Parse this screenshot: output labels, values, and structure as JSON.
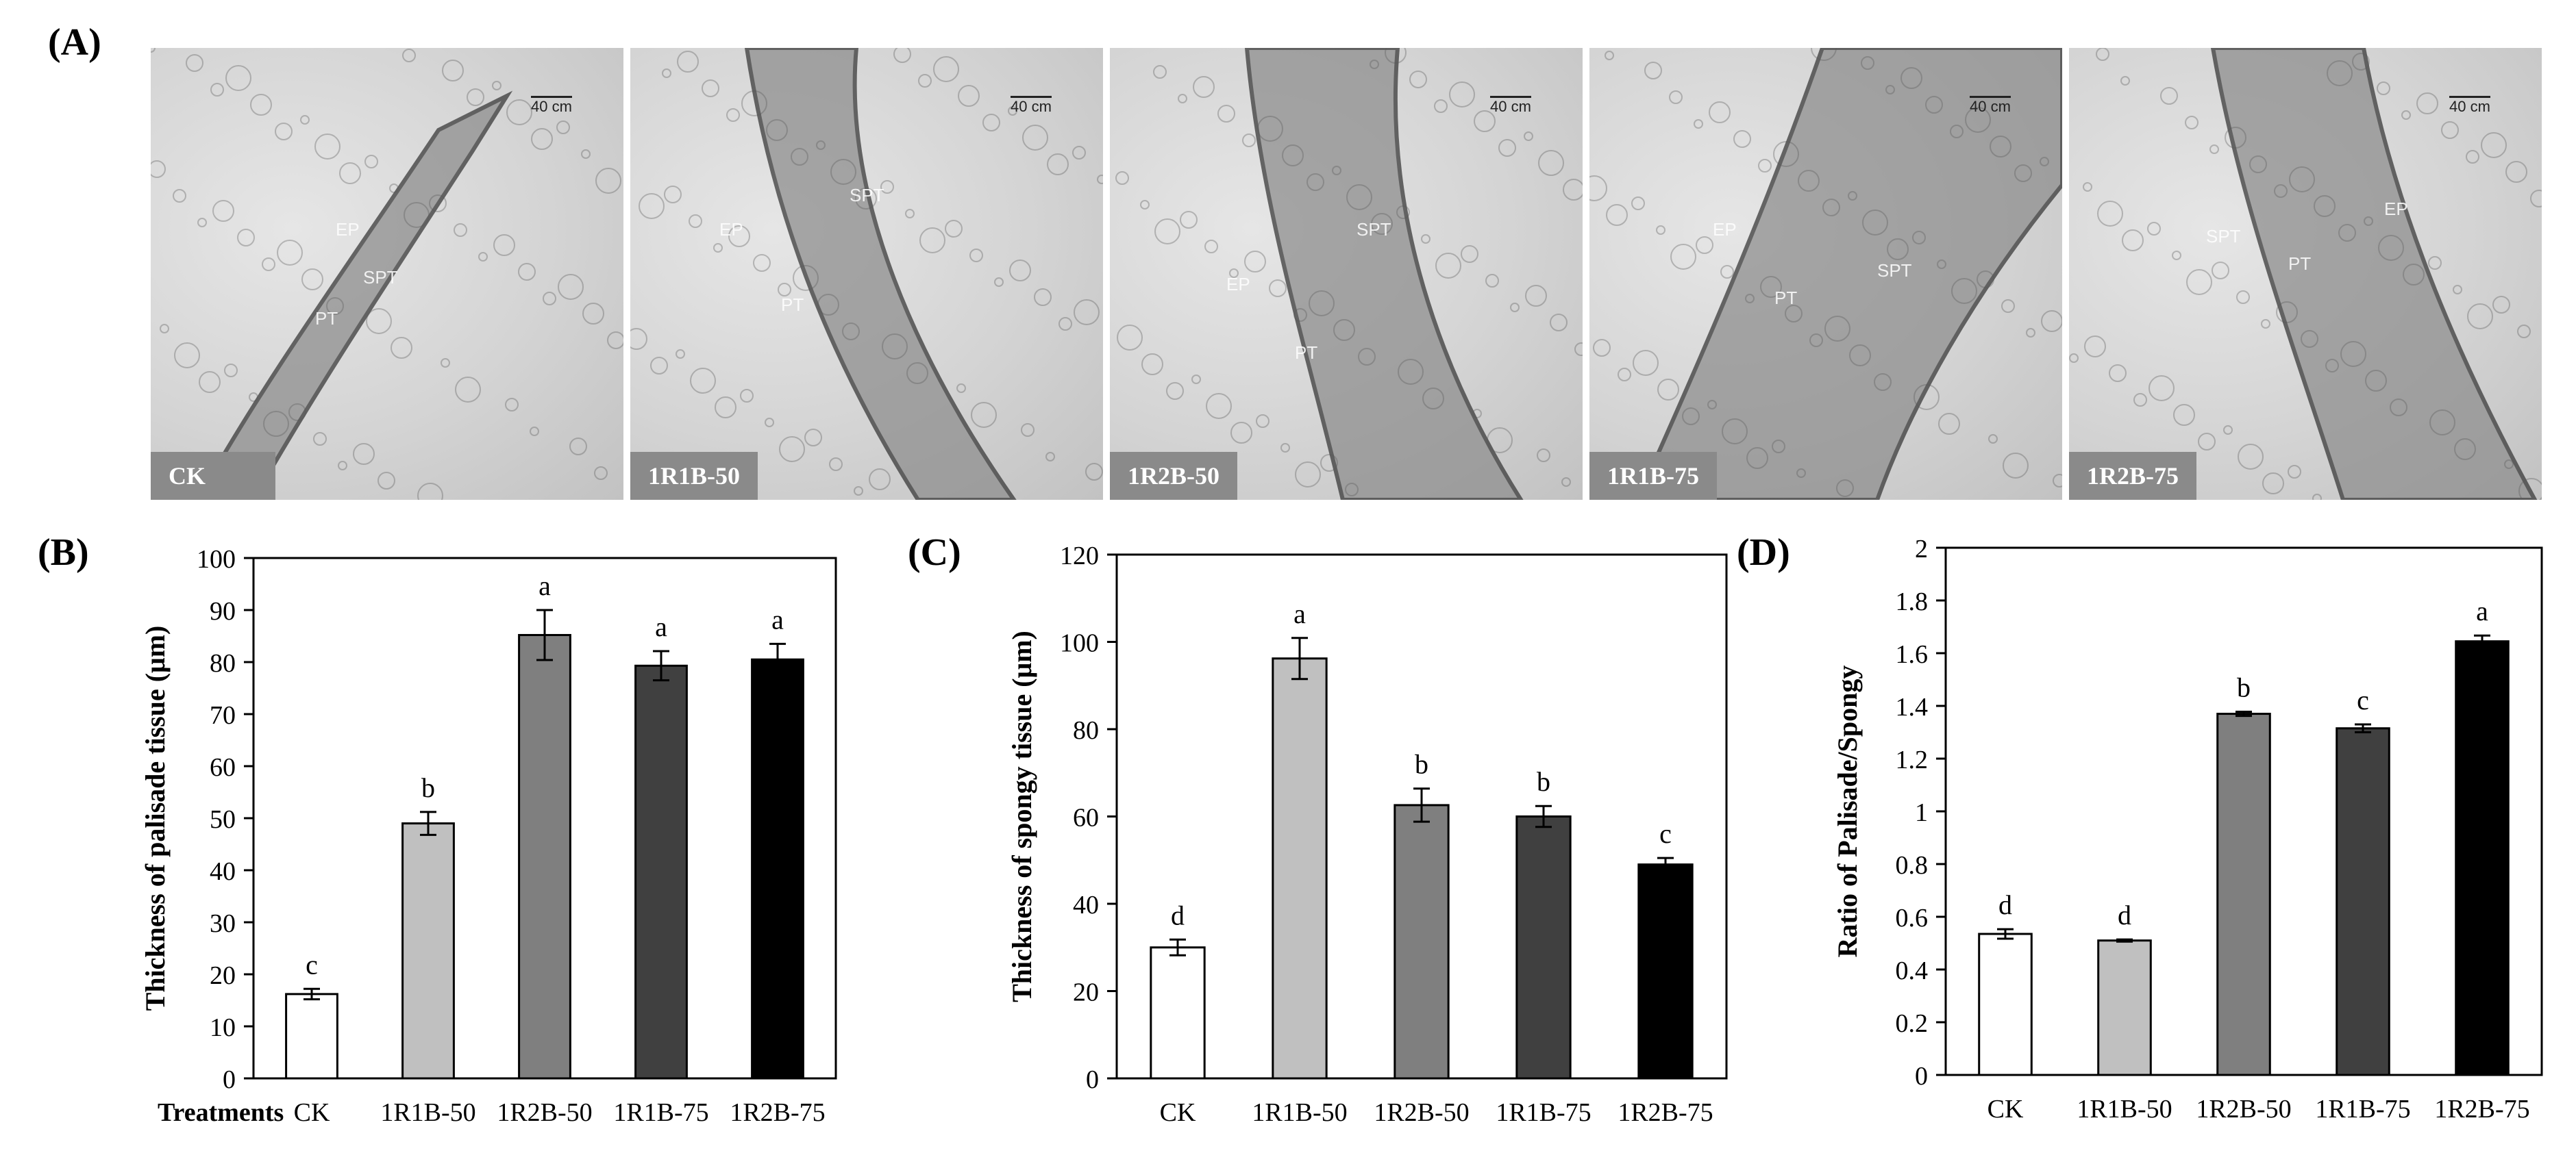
{
  "panel_a": {
    "letter": "(A)",
    "images": [
      {
        "label": "CK",
        "tags": [
          "EP",
          "SPT",
          "PT"
        ],
        "scale": "40 cm"
      },
      {
        "label": "1R1B-50",
        "tags": [
          "EP",
          "PT",
          "SPT"
        ],
        "scale": "40 cm"
      },
      {
        "label": "1R2B-50",
        "tags": [
          "EP",
          "SPT",
          "PT"
        ],
        "scale": "40 cm"
      },
      {
        "label": "1R1B-75",
        "tags": [
          "EP",
          "PT",
          "SPT"
        ],
        "scale": "40 cm"
      },
      {
        "label": "1R2B-75",
        "tags": [
          "SPT",
          "PT",
          "EP"
        ],
        "scale": "40 cm"
      }
    ]
  },
  "chart_data": [
    {
      "panel": "(B)",
      "type": "bar",
      "categories": [
        "CK",
        "1R1B-50",
        "1R2B-50",
        "1R1B-75",
        "1R2B-75"
      ],
      "values": [
        16.2,
        49.0,
        85.2,
        79.3,
        80.5
      ],
      "errors": [
        1.0,
        2.2,
        4.8,
        2.8,
        3.0
      ],
      "letters": [
        "c",
        "b",
        "a",
        "a",
        "a"
      ],
      "ylabel": "Thickness of palisade tissue (μm)",
      "xlabel": "Treatments",
      "ylim": [
        0,
        100
      ],
      "yticks": [
        0,
        10,
        20,
        30,
        40,
        50,
        60,
        70,
        80,
        90,
        100
      ],
      "colors": [
        "#ffffff",
        "#c0c0c0",
        "#7f7f7f",
        "#404040",
        "#000000"
      ]
    },
    {
      "panel": "(C)",
      "type": "bar",
      "categories": [
        "CK",
        "1R1B-50",
        "1R2B-50",
        "1R1B-75",
        "1R2B-75"
      ],
      "values": [
        30.0,
        96.2,
        62.6,
        60.0,
        49.0
      ],
      "errors": [
        1.8,
        4.7,
        3.8,
        2.4,
        1.5
      ],
      "letters": [
        "d",
        "a",
        "b",
        "b",
        "c"
      ],
      "ylabel": "Thickness of spongy tissue (μm)",
      "xlabel": "",
      "ylim": [
        0,
        120
      ],
      "yticks": [
        0,
        20,
        40,
        60,
        80,
        100,
        120
      ],
      "colors": [
        "#ffffff",
        "#c0c0c0",
        "#7f7f7f",
        "#404040",
        "#000000"
      ]
    },
    {
      "panel": "(D)",
      "type": "bar",
      "categories": [
        "CK",
        "1R1B-50",
        "1R2B-50",
        "1R1B-75",
        "1R2B-75"
      ],
      "values": [
        0.535,
        0.51,
        1.37,
        1.315,
        1.645
      ],
      "errors": [
        0.018,
        0.004,
        0.008,
        0.015,
        0.022
      ],
      "letters": [
        "d",
        "d",
        "b",
        "c",
        "a"
      ],
      "ylabel": "Ratio of Palisade/Spongy",
      "xlabel": "",
      "ylim": [
        0,
        2
      ],
      "yticks": [
        0,
        0.2,
        0.4,
        0.6,
        0.8,
        1,
        1.2,
        1.4,
        1.6,
        1.8,
        2
      ],
      "colors": [
        "#ffffff",
        "#c0c0c0",
        "#7f7f7f",
        "#404040",
        "#000000"
      ]
    }
  ]
}
